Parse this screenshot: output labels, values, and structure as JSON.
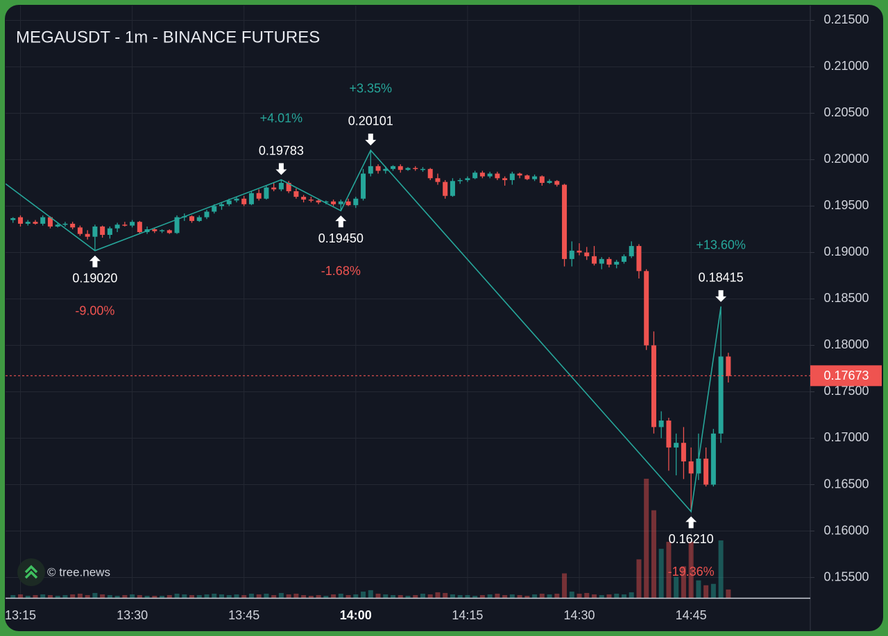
{
  "chart_data": {
    "type": "candlestick",
    "title": "MEGAUSDT - 1m - BINANCE FUTURES",
    "watermark": "© tree.news",
    "up_color": "#26a69a",
    "down_color": "#ef5350",
    "zigzag_color": "#26a69a",
    "grid": true,
    "xlim": [
      "13:13",
      "15:01"
    ],
    "xticks": [
      "13:15",
      "13:30",
      "13:45",
      "14:00",
      "14:15",
      "14:30",
      "14:45"
    ],
    "ylim": [
      0.1528,
      0.2166
    ],
    "yticks": [
      {
        "value": 0.155,
        "label": "0.15500"
      },
      {
        "value": 0.16,
        "label": "0.16000"
      },
      {
        "value": 0.165,
        "label": "0.16500"
      },
      {
        "value": 0.17,
        "label": "0.17000"
      },
      {
        "value": 0.175,
        "label": "0.17500"
      },
      {
        "value": 0.18,
        "label": "0.18000"
      },
      {
        "value": 0.185,
        "label": "0.18500"
      },
      {
        "value": 0.19,
        "label": "0.19000"
      },
      {
        "value": 0.195,
        "label": "0.19500"
      },
      {
        "value": 0.2,
        "label": "0.20000"
      },
      {
        "value": 0.205,
        "label": "0.20500"
      },
      {
        "value": 0.21,
        "label": "0.21000"
      },
      {
        "value": 0.215,
        "label": "0.21500"
      }
    ],
    "last_price": {
      "value": 0.17673,
      "label": "0.17673"
    },
    "candles": {
      "x": [
        "13:14",
        "13:15",
        "13:16",
        "13:17",
        "13:18",
        "13:19",
        "13:20",
        "13:21",
        "13:22",
        "13:23",
        "13:24",
        "13:25",
        "13:26",
        "13:27",
        "13:28",
        "13:29",
        "13:30",
        "13:31",
        "13:32",
        "13:33",
        "13:34",
        "13:35",
        "13:36",
        "13:37",
        "13:38",
        "13:39",
        "13:40",
        "13:41",
        "13:42",
        "13:43",
        "13:44",
        "13:45",
        "13:46",
        "13:47",
        "13:48",
        "13:49",
        "13:50",
        "13:51",
        "13:52",
        "13:53",
        "13:54",
        "13:55",
        "13:56",
        "13:57",
        "13:58",
        "13:59",
        "14:00",
        "14:01",
        "14:02",
        "14:03",
        "14:04",
        "14:05",
        "14:06",
        "14:07",
        "14:08",
        "14:09",
        "14:10",
        "14:11",
        "14:12",
        "14:13",
        "14:14",
        "14:15",
        "14:16",
        "14:17",
        "14:18",
        "14:19",
        "14:20",
        "14:21",
        "14:22",
        "14:23",
        "14:24",
        "14:25",
        "14:26",
        "14:27",
        "14:28",
        "14:29",
        "14:30",
        "14:31",
        "14:32",
        "14:33",
        "14:34",
        "14:35",
        "14:36",
        "14:37",
        "14:38",
        "14:39",
        "14:40",
        "14:41",
        "14:42",
        "14:43",
        "14:44",
        "14:45",
        "14:46",
        "14:47",
        "14:48",
        "14:49",
        "14:50"
      ],
      "open": [
        0.1935,
        0.1938,
        0.1931,
        0.1933,
        0.1931,
        0.1938,
        0.1928,
        0.193,
        0.1931,
        0.1927,
        0.192,
        0.1917,
        0.1928,
        0.1919,
        0.1926,
        0.193,
        0.1929,
        0.1933,
        0.1922,
        0.1925,
        0.1923,
        0.1924,
        0.1921,
        0.1938,
        0.1939,
        0.1934,
        0.1938,
        0.1944,
        0.195,
        0.1952,
        0.1956,
        0.1958,
        0.1952,
        0.1964,
        0.1958,
        0.197,
        0.1968,
        0.1975,
        0.1966,
        0.196,
        0.1957,
        0.1956,
        0.1954,
        0.1955,
        0.1952,
        0.1955,
        0.1951,
        0.1958,
        0.1985,
        0.1993,
        0.1988,
        0.199,
        0.1993,
        0.1989,
        0.1991,
        0.199,
        0.199,
        0.198,
        0.1976,
        0.1961,
        0.1977,
        0.1978,
        0.198,
        0.1986,
        0.1982,
        0.1985,
        0.198,
        0.1978,
        0.1985,
        0.1983,
        0.1979,
        0.1982,
        0.1975,
        0.1977,
        0.1973,
        0.1893,
        0.1902,
        0.19,
        0.1896,
        0.1888,
        0.1893,
        0.1887,
        0.189,
        0.1896,
        0.1907,
        0.188,
        0.18,
        0.1712,
        0.1719,
        0.169,
        0.1695,
        0.1675,
        0.1662,
        0.1678,
        0.165,
        0.1705,
        0.1788
      ],
      "high": [
        0.1938,
        0.194,
        0.1935,
        0.1935,
        0.194,
        0.1939,
        0.1932,
        0.1933,
        0.1933,
        0.1929,
        0.1924,
        0.193,
        0.1929,
        0.1928,
        0.1932,
        0.1933,
        0.1935,
        0.1934,
        0.1928,
        0.1926,
        0.1925,
        0.1925,
        0.194,
        0.1942,
        0.194,
        0.194,
        0.1946,
        0.1952,
        0.1954,
        0.1958,
        0.196,
        0.1961,
        0.1966,
        0.1968,
        0.1972,
        0.1975,
        0.1978,
        0.1977,
        0.1969,
        0.1962,
        0.196,
        0.1958,
        0.1956,
        0.1957,
        0.1957,
        0.1958,
        0.196,
        0.199,
        0.201,
        0.1995,
        0.1993,
        0.1994,
        0.1995,
        0.1992,
        0.1993,
        0.1992,
        0.1991,
        0.1985,
        0.1978,
        0.198,
        0.198,
        0.1982,
        0.1988,
        0.1988,
        0.1987,
        0.1987,
        0.1982,
        0.1987,
        0.1986,
        0.1984,
        0.1984,
        0.1983,
        0.1979,
        0.1978,
        0.1974,
        0.1912,
        0.191,
        0.1906,
        0.1907,
        0.1895,
        0.1895,
        0.1892,
        0.1898,
        0.1912,
        0.1909,
        0.1882,
        0.1815,
        0.1729,
        0.1722,
        0.1705,
        0.1712,
        0.169,
        0.1705,
        0.169,
        0.171,
        0.1842,
        0.1792
      ],
      "low": [
        0.1932,
        0.1928,
        0.1929,
        0.193,
        0.1929,
        0.1926,
        0.1927,
        0.1928,
        0.1925,
        0.1918,
        0.1914,
        0.1902,
        0.1916,
        0.1915,
        0.1922,
        0.1928,
        0.1927,
        0.192,
        0.192,
        0.1921,
        0.1921,
        0.192,
        0.192,
        0.1934,
        0.1932,
        0.1933,
        0.1936,
        0.1942,
        0.1946,
        0.195,
        0.1954,
        0.195,
        0.1951,
        0.1956,
        0.1957,
        0.1966,
        0.1966,
        0.1964,
        0.1958,
        0.1954,
        0.1954,
        0.1952,
        0.1952,
        0.195,
        0.1945,
        0.195,
        0.1948,
        0.1956,
        0.1982,
        0.1985,
        0.1985,
        0.1988,
        0.1986,
        0.1988,
        0.1988,
        0.1987,
        0.1978,
        0.1973,
        0.1958,
        0.196,
        0.1974,
        0.1976,
        0.1979,
        0.198,
        0.198,
        0.1978,
        0.1972,
        0.1973,
        0.198,
        0.1978,
        0.1977,
        0.1972,
        0.1974,
        0.1971,
        0.1885,
        0.1885,
        0.1897,
        0.1892,
        0.1886,
        0.1882,
        0.1884,
        0.1883,
        0.1888,
        0.1894,
        0.1872,
        0.1795,
        0.1705,
        0.17,
        0.1665,
        0.166,
        0.1656,
        0.1621,
        0.1655,
        0.1648,
        0.1648,
        0.1695,
        0.176
      ],
      "close": [
        0.1937,
        0.1931,
        0.1933,
        0.1931,
        0.1938,
        0.1928,
        0.193,
        0.1931,
        0.1927,
        0.192,
        0.1917,
        0.1928,
        0.1919,
        0.1926,
        0.193,
        0.1929,
        0.1933,
        0.1922,
        0.1925,
        0.1923,
        0.1924,
        0.1921,
        0.1938,
        0.1939,
        0.1934,
        0.1938,
        0.1944,
        0.195,
        0.1952,
        0.1956,
        0.1958,
        0.1952,
        0.1964,
        0.1958,
        0.197,
        0.1968,
        0.1975,
        0.1966,
        0.196,
        0.1957,
        0.1956,
        0.1954,
        0.1955,
        0.1952,
        0.1955,
        0.1951,
        0.1958,
        0.1985,
        0.1993,
        0.1988,
        0.199,
        0.1993,
        0.1989,
        0.1991,
        0.199,
        0.199,
        0.198,
        0.1976,
        0.1961,
        0.1977,
        0.1978,
        0.198,
        0.1986,
        0.1982,
        0.1985,
        0.198,
        0.1978,
        0.1985,
        0.1983,
        0.1979,
        0.1982,
        0.1975,
        0.1977,
        0.1973,
        0.1893,
        0.1902,
        0.19,
        0.1896,
        0.1888,
        0.1893,
        0.1887,
        0.189,
        0.1896,
        0.1907,
        0.188,
        0.18,
        0.1712,
        0.1719,
        0.169,
        0.1695,
        0.1675,
        0.1662,
        0.1678,
        0.165,
        0.1705,
        0.1788,
        0.1767
      ],
      "volume": [
        4,
        5,
        3,
        4,
        5,
        4,
        3,
        4,
        5,
        6,
        4,
        7,
        5,
        4,
        3,
        4,
        5,
        4,
        3,
        3,
        3,
        4,
        6,
        5,
        4,
        4,
        5,
        6,
        5,
        4,
        5,
        4,
        6,
        5,
        6,
        4,
        7,
        5,
        6,
        4,
        3,
        4,
        3,
        5,
        6,
        4,
        5,
        9,
        11,
        6,
        5,
        4,
        4,
        3,
        4,
        6,
        5,
        8,
        7,
        5,
        4,
        4,
        3,
        4,
        5,
        6,
        4,
        5,
        4,
        3,
        5,
        6,
        5,
        6,
        35,
        9,
        6,
        7,
        5,
        4,
        5,
        6,
        5,
        8,
        55,
        170,
        125,
        70,
        80,
        30,
        45,
        80,
        25,
        18,
        20,
        82,
        12
      ]
    },
    "pivots": [
      {
        "x": "13:13",
        "value": 0.1974
      },
      {
        "x": "13:25",
        "value": 0.1902,
        "label": "0.19020",
        "change": "-9.00%",
        "kind": "low"
      },
      {
        "x": "13:50",
        "value": 0.19783,
        "label": "0.19783",
        "change": "+4.01%",
        "kind": "high"
      },
      {
        "x": "13:58",
        "value": 0.1945,
        "label": "0.19450",
        "change": "-1.68%",
        "kind": "low"
      },
      {
        "x": "14:02",
        "value": 0.20101,
        "label": "0.20101",
        "change": "+3.35%",
        "kind": "high"
      },
      {
        "x": "14:45",
        "value": 0.1621,
        "label": "0.16210",
        "change": "-19.36%",
        "kind": "low"
      },
      {
        "x": "14:49",
        "value": 0.18415,
        "label": "0.18415",
        "change": "+13.60%",
        "kind": "high"
      }
    ]
  }
}
